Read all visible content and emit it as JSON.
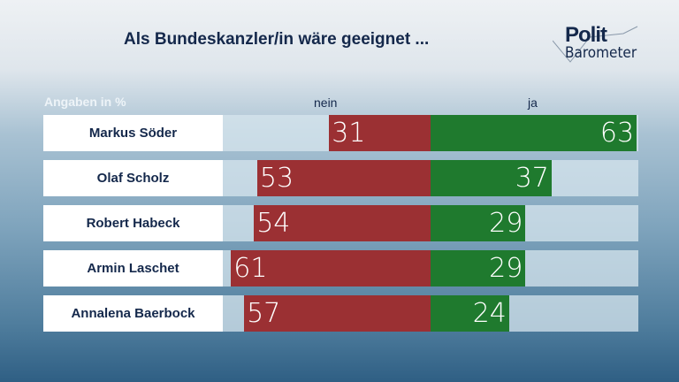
{
  "title": "Als Bundeskanzler/in wäre geeignet ...",
  "logo": {
    "line1": "Polit",
    "line2": "Barometer"
  },
  "chart_data": {
    "type": "bar",
    "title": "Als Bundeskanzler/in wäre geeignet ...",
    "unit_label": "Angaben in %",
    "categories": [
      "Markus Söder",
      "Olaf Scholz",
      "Robert Habeck",
      "Armin Laschet",
      "Annalena Baerbock"
    ],
    "series": [
      {
        "name": "nein",
        "color": "#9b3033",
        "values": [
          31,
          53,
          54,
          61,
          57
        ]
      },
      {
        "name": "ja",
        "color": "#1f7a2e",
        "values": [
          63,
          37,
          29,
          29,
          24
        ]
      }
    ]
  }
}
